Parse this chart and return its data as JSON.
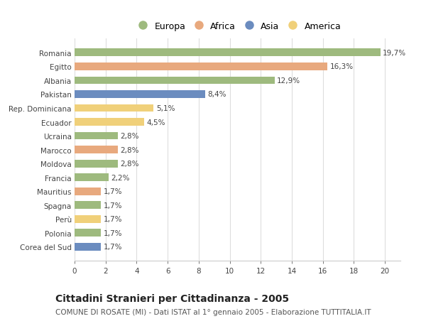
{
  "countries": [
    "Romania",
    "Egitto",
    "Albania",
    "Pakistan",
    "Rep. Dominicana",
    "Ecuador",
    "Ucraina",
    "Marocco",
    "Moldova",
    "Francia",
    "Mauritius",
    "Spagna",
    "Perù",
    "Polonia",
    "Corea del Sud"
  ],
  "values": [
    19.7,
    16.3,
    12.9,
    8.4,
    5.1,
    4.5,
    2.8,
    2.8,
    2.8,
    2.2,
    1.7,
    1.7,
    1.7,
    1.7,
    1.7
  ],
  "continents": [
    "Europa",
    "Africa",
    "Europa",
    "Asia",
    "America",
    "America",
    "Europa",
    "Africa",
    "Europa",
    "Europa",
    "Africa",
    "Europa",
    "America",
    "Europa",
    "Asia"
  ],
  "continent_colors": {
    "Europa": "#9eba7e",
    "Africa": "#e8a97e",
    "Asia": "#6b8cbf",
    "America": "#f0d07a"
  },
  "legend_order": [
    "Europa",
    "Africa",
    "Asia",
    "America"
  ],
  "title": "Cittadini Stranieri per Cittadinanza - 2005",
  "subtitle": "COMUNE DI ROSATE (MI) - Dati ISTAT al 1° gennaio 2005 - Elaborazione TUTTITALIA.IT",
  "xlim": [
    0,
    21
  ],
  "xticks": [
    0,
    2,
    4,
    6,
    8,
    10,
    12,
    14,
    16,
    18,
    20
  ],
  "bar_height": 0.55,
  "background_color": "#ffffff",
  "grid_color": "#dddddd",
  "label_fontsize": 7.5,
  "title_fontsize": 10,
  "subtitle_fontsize": 7.5,
  "tick_fontsize": 7.5,
  "legend_fontsize": 9
}
